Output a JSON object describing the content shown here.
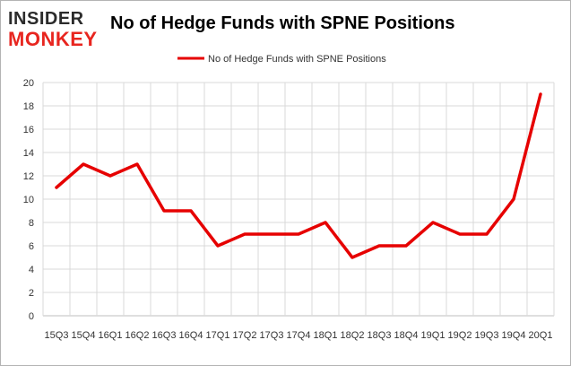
{
  "logo": {
    "line1": "INSIDER",
    "line2": "MONKEY"
  },
  "colors": {
    "series": "#e60000",
    "grid": "#d9d9d9",
    "axis": "#bfbfbf",
    "logo_dark": "#2b2b2b",
    "logo_red": "#e8251f"
  },
  "chart_data": {
    "type": "line",
    "title": "No of Hedge Funds with SPNE Positions",
    "categories": [
      "15Q3",
      "15Q4",
      "16Q1",
      "16Q2",
      "16Q3",
      "16Q4",
      "17Q1",
      "17Q2",
      "17Q3",
      "17Q4",
      "18Q1",
      "18Q2",
      "18Q3",
      "18Q4",
      "19Q1",
      "19Q2",
      "19Q3",
      "19Q4",
      "20Q1"
    ],
    "series": [
      {
        "name": "No of Hedge Funds with SPNE Positions",
        "values": [
          11,
          13,
          12,
          13,
          9,
          9,
          6,
          7,
          7,
          7,
          8,
          5,
          6,
          6,
          8,
          7,
          7,
          10,
          19
        ]
      }
    ],
    "xlabel": "",
    "ylabel": "",
    "ylim": [
      0,
      20
    ],
    "yticks": [
      0,
      2,
      4,
      6,
      8,
      10,
      12,
      14,
      16,
      18,
      20
    ],
    "grid": true,
    "legend": "top-center"
  }
}
